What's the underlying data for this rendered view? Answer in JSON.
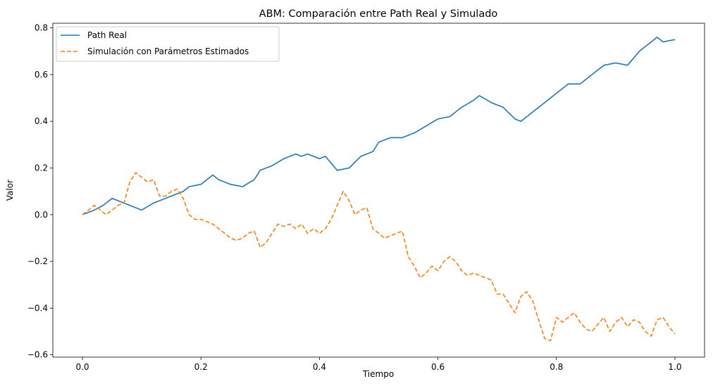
{
  "chart_data": {
    "type": "line",
    "title": "ABM: Comparación entre Path Real y Simulado",
    "xlabel": "Tiempo",
    "ylabel": "Valor",
    "xlim": [
      -0.05,
      1.05
    ],
    "ylim": [
      -0.61,
      0.82
    ],
    "xticks": [
      0.0,
      0.2,
      0.4,
      0.6,
      0.8,
      1.0
    ],
    "xtick_labels": [
      "0.0",
      "0.2",
      "0.4",
      "0.6",
      "0.8",
      "1.0"
    ],
    "yticks": [
      -0.6,
      -0.4,
      -0.2,
      0.0,
      0.2,
      0.4,
      0.6,
      0.8
    ],
    "ytick_labels": [
      "−0.6",
      "−0.4",
      "−0.2",
      "0.0",
      "0.2",
      "0.4",
      "0.6",
      "0.8"
    ],
    "grid": false,
    "legend": "top-left",
    "series": [
      {
        "name": "Path Real",
        "color": "#1f77b4",
        "style": "solid",
        "x": [
          0.0,
          0.02,
          0.035,
          0.05,
          0.07,
          0.09,
          0.1,
          0.12,
          0.14,
          0.16,
          0.17,
          0.18,
          0.2,
          0.22,
          0.23,
          0.25,
          0.27,
          0.29,
          0.3,
          0.32,
          0.34,
          0.36,
          0.37,
          0.38,
          0.4,
          0.41,
          0.43,
          0.45,
          0.47,
          0.49,
          0.5,
          0.52,
          0.54,
          0.56,
          0.58,
          0.6,
          0.62,
          0.64,
          0.66,
          0.67,
          0.69,
          0.71,
          0.73,
          0.74,
          0.76,
          0.78,
          0.8,
          0.82,
          0.84,
          0.86,
          0.88,
          0.9,
          0.92,
          0.94,
          0.96,
          0.97,
          0.98,
          1.0
        ],
        "y": [
          0.0,
          0.02,
          0.04,
          0.07,
          0.05,
          0.03,
          0.02,
          0.05,
          0.07,
          0.09,
          0.1,
          0.12,
          0.13,
          0.17,
          0.15,
          0.13,
          0.12,
          0.15,
          0.19,
          0.21,
          0.24,
          0.26,
          0.25,
          0.26,
          0.24,
          0.25,
          0.19,
          0.2,
          0.25,
          0.27,
          0.31,
          0.33,
          0.33,
          0.35,
          0.38,
          0.41,
          0.42,
          0.46,
          0.49,
          0.51,
          0.48,
          0.46,
          0.41,
          0.4,
          0.44,
          0.48,
          0.52,
          0.56,
          0.56,
          0.6,
          0.64,
          0.65,
          0.64,
          0.7,
          0.74,
          0.76,
          0.74,
          0.75
        ]
      },
      {
        "name": "Simulación con Parámetros Estimados",
        "color": "#ff7f0e",
        "style": "dashed",
        "x": [
          0.0,
          0.01,
          0.02,
          0.03,
          0.04,
          0.05,
          0.06,
          0.07,
          0.08,
          0.09,
          0.1,
          0.11,
          0.12,
          0.13,
          0.14,
          0.15,
          0.16,
          0.17,
          0.18,
          0.19,
          0.2,
          0.21,
          0.22,
          0.23,
          0.24,
          0.25,
          0.26,
          0.27,
          0.28,
          0.29,
          0.3,
          0.31,
          0.32,
          0.33,
          0.34,
          0.35,
          0.36,
          0.37,
          0.38,
          0.39,
          0.4,
          0.41,
          0.42,
          0.43,
          0.44,
          0.45,
          0.46,
          0.47,
          0.48,
          0.49,
          0.5,
          0.51,
          0.52,
          0.53,
          0.54,
          0.55,
          0.56,
          0.57,
          0.58,
          0.59,
          0.6,
          0.61,
          0.62,
          0.63,
          0.64,
          0.65,
          0.66,
          0.67,
          0.68,
          0.69,
          0.7,
          0.71,
          0.72,
          0.73,
          0.74,
          0.75,
          0.76,
          0.77,
          0.78,
          0.79,
          0.8,
          0.81,
          0.82,
          0.83,
          0.84,
          0.85,
          0.86,
          0.87,
          0.88,
          0.89,
          0.9,
          0.91,
          0.92,
          0.93,
          0.94,
          0.95,
          0.96,
          0.97,
          0.98,
          0.99,
          1.0
        ],
        "y": [
          0.0,
          0.02,
          0.04,
          0.02,
          0.0,
          0.02,
          0.04,
          0.05,
          0.14,
          0.18,
          0.16,
          0.14,
          0.15,
          0.08,
          0.08,
          0.1,
          0.11,
          0.07,
          0.0,
          -0.02,
          -0.02,
          -0.03,
          -0.04,
          -0.06,
          -0.08,
          -0.1,
          -0.11,
          -0.1,
          -0.08,
          -0.07,
          -0.14,
          -0.12,
          -0.08,
          -0.04,
          -0.05,
          -0.04,
          -0.06,
          -0.04,
          -0.08,
          -0.06,
          -0.08,
          -0.06,
          -0.02,
          0.04,
          0.1,
          0.06,
          0.0,
          0.02,
          0.03,
          -0.06,
          -0.08,
          -0.1,
          -0.09,
          -0.08,
          -0.07,
          -0.18,
          -0.22,
          -0.27,
          -0.25,
          -0.22,
          -0.24,
          -0.2,
          -0.18,
          -0.2,
          -0.24,
          -0.26,
          -0.25,
          -0.26,
          -0.27,
          -0.28,
          -0.34,
          -0.34,
          -0.38,
          -0.42,
          -0.35,
          -0.33,
          -0.37,
          -0.45,
          -0.53,
          -0.54,
          -0.44,
          -0.46,
          -0.44,
          -0.42,
          -0.46,
          -0.49,
          -0.5,
          -0.47,
          -0.44,
          -0.5,
          -0.46,
          -0.44,
          -0.48,
          -0.45,
          -0.46,
          -0.5,
          -0.52,
          -0.45,
          -0.44,
          -0.48,
          -0.51
        ]
      }
    ]
  }
}
